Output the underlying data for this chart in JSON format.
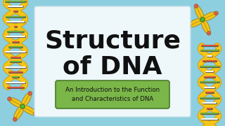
{
  "bg_color": "#8ecfdf",
  "center_box_color": "#eef7fa",
  "center_box_edge": "#c5dde8",
  "title_line1": "Structure",
  "title_line2": "of DNA",
  "title_color": "#111111",
  "title_fontsize": 26,
  "subtitle": "An Introduction to the Function\nand Characteristics of DNA",
  "subtitle_color": "#111111",
  "subtitle_fontsize": 6.2,
  "subtitle_box_color": "#7ab648",
  "subtitle_box_edge": "#4a7a28",
  "strand_color": "#f5c518",
  "strand_edge": "#d4a010",
  "rung_red": "#d9543a",
  "rung_green": "#6aaa3a",
  "rung_white": "#ffffff",
  "chromo_tip": "#d96040",
  "chromo_center": "#5ab030",
  "chromo_body": "#f5c518",
  "chromo_pattern": "#c8a010"
}
